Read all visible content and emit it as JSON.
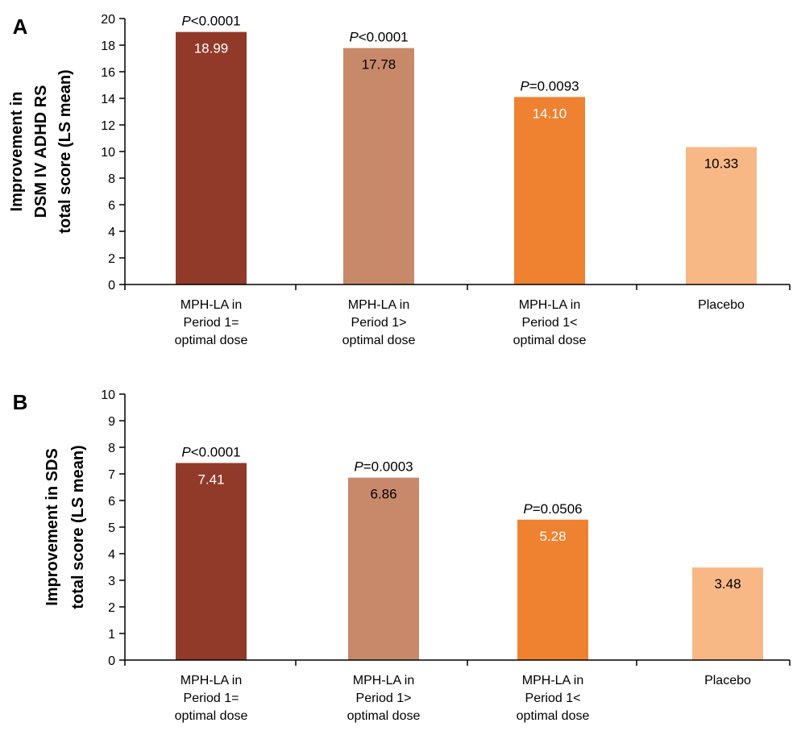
{
  "chart_data": [
    {
      "type": "bar",
      "panel_label": "A",
      "categories": [
        [
          "MPH-LA in",
          "Period 1=",
          "optimal dose"
        ],
        [
          "MPH-LA in",
          "Period 1>",
          "optimal dose"
        ],
        [
          "MPH-LA in",
          "Period 1<",
          "optimal dose"
        ],
        [
          "Placebo"
        ]
      ],
      "values": [
        18.99,
        17.78,
        14.1,
        10.33
      ],
      "value_labels": [
        "18.99",
        "17.78",
        "14.10",
        "10.33"
      ],
      "p_values": [
        {
          "p": "P",
          "rest": "<0.0001"
        },
        {
          "p": "P",
          "rest": "<0.0001"
        },
        {
          "p": "P",
          "rest": "=0.0093"
        },
        null
      ],
      "ylabel": [
        "Improvement in",
        "DSM IV ADHD RS",
        "total score (LS mean)"
      ],
      "ylim": [
        0,
        20
      ],
      "yticks": [
        0,
        2,
        4,
        6,
        8,
        10,
        12,
        14,
        16,
        18,
        20
      ],
      "bar_colors": [
        "#923a29",
        "#c8896b",
        "#ee8230",
        "#f8b886"
      ],
      "value_label_colors": [
        "#ffffff",
        "#000000",
        "#ffffff",
        "#000000"
      ]
    },
    {
      "type": "bar",
      "panel_label": "B",
      "categories": [
        [
          "MPH-LA in",
          "Period 1=",
          "optimal dose"
        ],
        [
          "MPH-LA in",
          "Period 1>",
          "optimal dose"
        ],
        [
          "MPH-LA in",
          "Period 1<",
          "optimal dose"
        ],
        [
          "Placebo"
        ]
      ],
      "values": [
        7.41,
        6.86,
        5.28,
        3.48
      ],
      "value_labels": [
        "7.41",
        "6.86",
        "5.28",
        "3.48"
      ],
      "p_values": [
        {
          "p": "P",
          "rest": "<0.0001"
        },
        {
          "p": "P",
          "rest": "=0.0003"
        },
        {
          "p": "P",
          "rest": "=0.0506"
        },
        null
      ],
      "ylabel": [
        "Improvement in SDS",
        "total score (LS mean)"
      ],
      "ylim": [
        0,
        10
      ],
      "yticks": [
        0,
        1,
        2,
        3,
        4,
        5,
        6,
        7,
        8,
        9,
        10
      ],
      "bar_colors": [
        "#923a29",
        "#c8896b",
        "#ee8230",
        "#f8b886"
      ],
      "value_label_colors": [
        "#ffffff",
        "#000000",
        "#ffffff",
        "#000000"
      ]
    }
  ]
}
